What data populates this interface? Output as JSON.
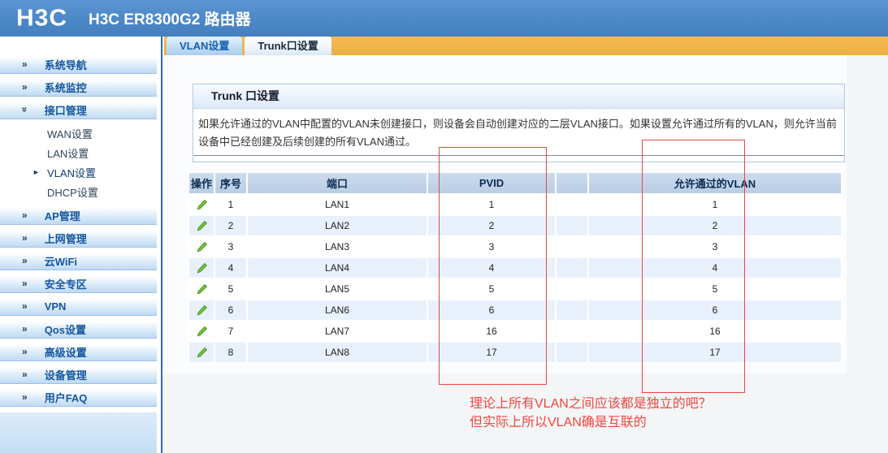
{
  "header": {
    "logo": "H3C",
    "title": "H3C ER8300G2 路由器"
  },
  "tabs": [
    {
      "name": "vlan-settings-tab",
      "label": "VLAN设置",
      "active": false
    },
    {
      "name": "trunk-settings-tab",
      "label": "Trunk口设置",
      "active": true
    }
  ],
  "sidebar": {
    "items": [
      {
        "name": "system-navigation",
        "label": "系统导航"
      },
      {
        "name": "system-monitoring",
        "label": "系统监控"
      },
      {
        "name": "interface-management",
        "label": "接口管理",
        "expanded": true,
        "children": [
          {
            "name": "wan-settings",
            "label": "WAN设置"
          },
          {
            "name": "lan-settings",
            "label": "LAN设置"
          },
          {
            "name": "vlan-settings",
            "label": "VLAN设置",
            "active": true
          },
          {
            "name": "dhcp-settings",
            "label": "DHCP设置"
          }
        ]
      },
      {
        "name": "ap-management",
        "label": "AP管理"
      },
      {
        "name": "internet-management",
        "label": "上网管理"
      },
      {
        "name": "cloud-wifi",
        "label": "云WiFi"
      },
      {
        "name": "security-zone",
        "label": "安全专区"
      },
      {
        "name": "vpn",
        "label": "VPN"
      },
      {
        "name": "qos-settings",
        "label": "Qos设置"
      },
      {
        "name": "advanced-settings",
        "label": "高级设置"
      },
      {
        "name": "device-management",
        "label": "设备管理"
      },
      {
        "name": "user-faq",
        "label": "用户FAQ"
      }
    ]
  },
  "panel": {
    "title": "Trunk 口设置",
    "description": "如果允许通过的VLAN中配置的VLAN未创建接口，则设备会自动创建对应的二层VLAN接口。如果设置允许通过所有的VLAN，则允许当前设备中已经创建及后续创建的所有VLAN通过。"
  },
  "table": {
    "columns": [
      "操作",
      "序号",
      "端口",
      "PVID",
      "",
      "允许通过的VLAN"
    ],
    "rows": [
      {
        "no": "1",
        "port": "LAN1",
        "pvid": "1",
        "vlan": "1"
      },
      {
        "no": "2",
        "port": "LAN2",
        "pvid": "2",
        "vlan": "2"
      },
      {
        "no": "3",
        "port": "LAN3",
        "pvid": "3",
        "vlan": "3"
      },
      {
        "no": "4",
        "port": "LAN4",
        "pvid": "4",
        "vlan": "4"
      },
      {
        "no": "5",
        "port": "LAN5",
        "pvid": "5",
        "vlan": "5"
      },
      {
        "no": "6",
        "port": "LAN6",
        "pvid": "6",
        "vlan": "6"
      },
      {
        "no": "7",
        "port": "LAN7",
        "pvid": "16",
        "vlan": "16"
      },
      {
        "no": "8",
        "port": "LAN8",
        "pvid": "17",
        "vlan": "17"
      }
    ]
  },
  "annotations": {
    "highlight_color": "#e8473f",
    "boxes": [
      {
        "target": "pvid-column"
      },
      {
        "target": "allowed-vlan-column"
      }
    ],
    "note_line1": "理论上所有VLAN之间应该都是独立的吧？",
    "note_line2": "但实际上所以VLAN确是互联的"
  },
  "icons": {
    "expand": "»",
    "active_arrow": "►",
    "edit": "pencil-icon"
  },
  "colors": {
    "header_blue": "#4a85c5",
    "tab_orange": "#eeae3e",
    "table_header_blue": "#bdd1e7",
    "row_alt_blue": "#e8f1fb",
    "pencil_green": "#74c33e",
    "annotation_red": "#e8473f"
  }
}
